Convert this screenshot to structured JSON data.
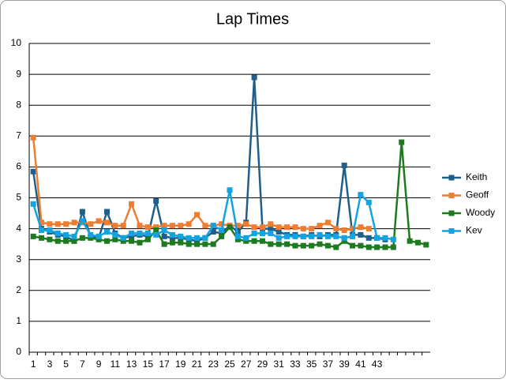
{
  "chart_data": {
    "type": "line",
    "title": "Lap Times",
    "categories": [
      1,
      null,
      3,
      null,
      5,
      null,
      7,
      null,
      9,
      null,
      11,
      null,
      13,
      null,
      15,
      null,
      17,
      null,
      19,
      null,
      21,
      null,
      23,
      null,
      25,
      null,
      27,
      null,
      29,
      null,
      31,
      null,
      33,
      null,
      35,
      null,
      37,
      null,
      39,
      null,
      41,
      null,
      43,
      null,
      null,
      null,
      null,
      null,
      null
    ],
    "ylim": [
      0,
      10
    ],
    "yticks": [
      0,
      1,
      2,
      3,
      4,
      5,
      6,
      7,
      8,
      9,
      10
    ],
    "grid": true,
    "legend": "right",
    "series": [
      {
        "name": "Keith",
        "color": "#1f5f8b",
        "values": [
          5.85,
          4.0,
          3.9,
          3.8,
          3.75,
          3.6,
          4.55,
          3.75,
          3.7,
          4.55,
          3.85,
          3.7,
          3.75,
          3.8,
          3.75,
          4.9,
          3.75,
          3.7,
          3.7,
          3.65,
          3.6,
          3.7,
          3.9,
          3.85,
          4.1,
          3.9,
          4.2,
          8.9,
          4.0,
          4.0,
          3.9,
          3.8,
          3.8,
          3.75,
          3.8,
          3.75,
          3.8,
          3.8,
          6.05,
          3.8,
          3.8,
          3.7,
          3.7,
          3.65,
          null,
          null,
          null,
          null,
          null
        ]
      },
      {
        "name": "Geoff",
        "color": "#ed7d31",
        "values": [
          6.95,
          4.2,
          4.15,
          4.15,
          4.15,
          4.2,
          4.2,
          4.15,
          4.25,
          4.2,
          4.1,
          4.1,
          4.8,
          4.1,
          4.05,
          4.05,
          4.1,
          4.1,
          4.1,
          4.15,
          4.45,
          4.1,
          4.1,
          4.15,
          4.1,
          4.1,
          4.15,
          4.05,
          4.05,
          4.15,
          4.05,
          4.05,
          4.05,
          4.0,
          4.0,
          4.1,
          4.2,
          4.0,
          3.95,
          4.0,
          4.05,
          4.0,
          null,
          null,
          null,
          null,
          null,
          null,
          null
        ]
      },
      {
        "name": "Woody",
        "color": "#1e7a1e",
        "values": [
          3.75,
          3.7,
          3.65,
          3.6,
          3.6,
          3.6,
          3.7,
          3.7,
          3.65,
          3.6,
          3.65,
          3.6,
          3.6,
          3.55,
          3.65,
          3.95,
          3.5,
          3.55,
          3.55,
          3.5,
          3.5,
          3.5,
          3.5,
          3.75,
          4.05,
          3.65,
          3.6,
          3.6,
          3.6,
          3.5,
          3.5,
          3.5,
          3.45,
          3.45,
          3.45,
          3.5,
          3.45,
          3.4,
          3.6,
          3.45,
          3.45,
          3.4,
          3.4,
          3.4,
          3.4,
          6.8,
          3.6,
          3.55,
          3.48
        ]
      },
      {
        "name": "Kev",
        "color": "#13a3e0",
        "values": [
          4.8,
          3.95,
          3.95,
          3.85,
          3.8,
          3.75,
          4.25,
          3.8,
          3.75,
          3.9,
          3.8,
          3.7,
          3.85,
          3.85,
          3.85,
          3.8,
          3.95,
          3.8,
          3.75,
          3.7,
          3.7,
          3.7,
          4.1,
          3.95,
          5.25,
          3.75,
          3.7,
          3.85,
          3.85,
          3.85,
          3.7,
          3.75,
          3.75,
          3.75,
          3.75,
          3.8,
          3.75,
          3.75,
          3.7,
          3.75,
          5.1,
          4.85,
          3.7,
          3.7,
          3.65,
          null,
          null,
          null,
          null
        ]
      }
    ]
  }
}
